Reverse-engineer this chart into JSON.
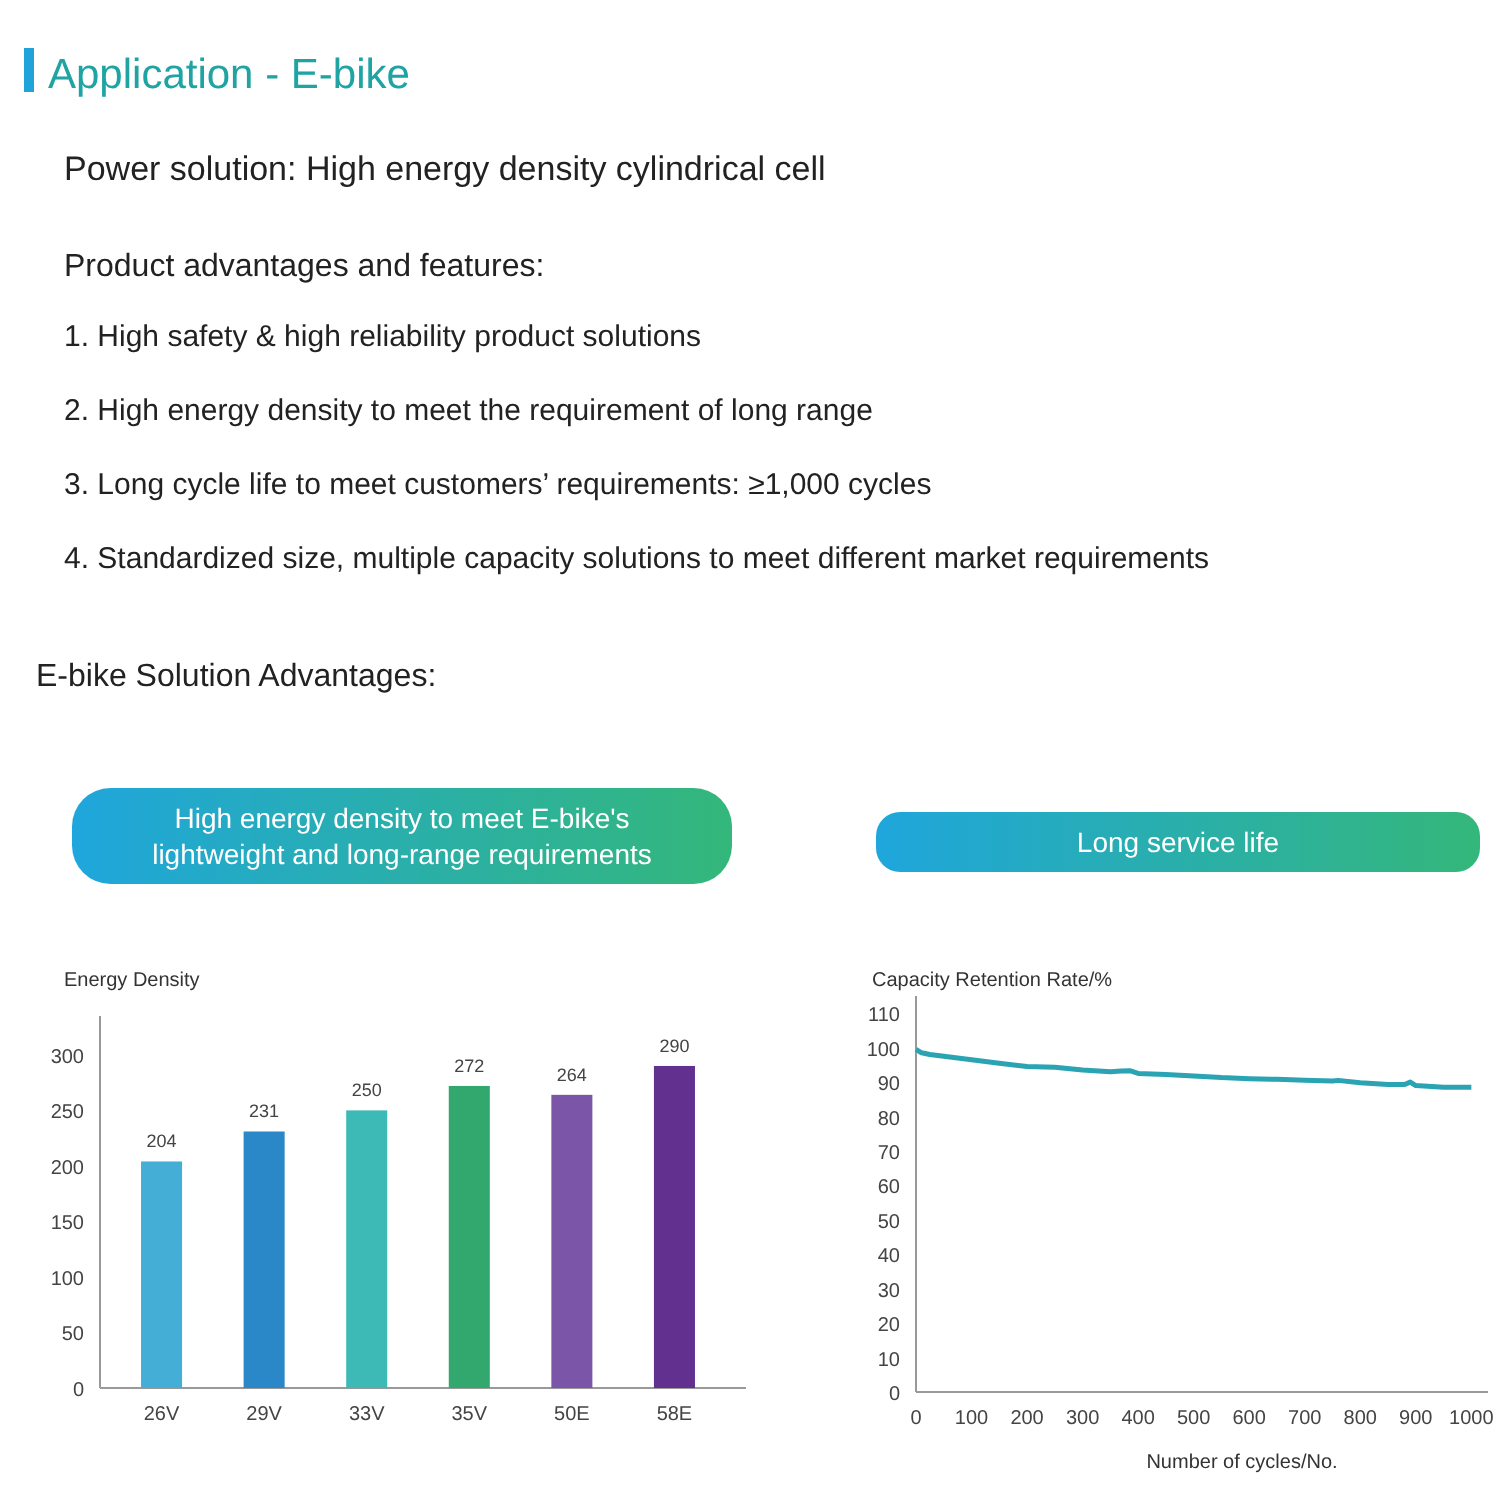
{
  "chart_data": [
    {
      "type": "other",
      "title": "Application - E-bike",
      "annotations": [
        "Power solution: High energy density cylindrical cell",
        "Product advantages and features:",
        "1. High safety & high reliability product solutions",
        "2. High energy density to meet the requirement of long range",
        "3. Long cycle life to meet customers’ requirements: ≥1,000 cycles",
        "4. Standardized size, multiple capacity solutions to meet different market requirements",
        "E-bike Solution Advantages:"
      ]
    },
    {
      "type": "bar",
      "subtitle": "High energy density to meet E-bike's lightweight and long-range requirements",
      "ylabel": "Energy Density",
      "categories": [
        "26V",
        "29V",
        "33V",
        "35V",
        "50E",
        "58E"
      ],
      "values": [
        204,
        231,
        250,
        272,
        264,
        290
      ],
      "colors": [
        "#45aed6",
        "#2a87c8",
        "#3dbab5",
        "#32a86e",
        "#7b55a8",
        "#62308f"
      ],
      "ylim": [
        0,
        335
      ],
      "yticks": [
        0,
        50,
        100,
        150,
        200,
        250,
        300
      ],
      "data_labels": true
    },
    {
      "type": "line",
      "subtitle": "Long service life",
      "ylabel": "Capacity Retention Rate/%",
      "xlabel": "Number of cycles/No.",
      "xlim": [
        0,
        1030
      ],
      "xticks": [
        0,
        100,
        200,
        300,
        400,
        500,
        600,
        700,
        800,
        900,
        1000
      ],
      "ylim": [
        0,
        115
      ],
      "yticks": [
        0,
        10,
        20,
        30,
        40,
        50,
        60,
        70,
        80,
        90,
        100,
        110
      ],
      "marker": "none",
      "series": [
        {
          "color": "#2aa3b3",
          "x": [
            0,
            10,
            25,
            50,
            100,
            150,
            200,
            250,
            300,
            350,
            370,
            385,
            400,
            450,
            500,
            550,
            600,
            650,
            700,
            750,
            760,
            800,
            850,
            880,
            890,
            900,
            950,
            1000
          ],
          "values": [
            99.5,
            98.5,
            98,
            97.5,
            96.5,
            95.5,
            94.5,
            94.3,
            93.5,
            93,
            93.2,
            93.3,
            92.5,
            92.2,
            91.8,
            91.3,
            91,
            90.8,
            90.5,
            90.3,
            90.5,
            89.8,
            89.3,
            89.3,
            90,
            89,
            88.5,
            88.5
          ]
        }
      ]
    }
  ]
}
